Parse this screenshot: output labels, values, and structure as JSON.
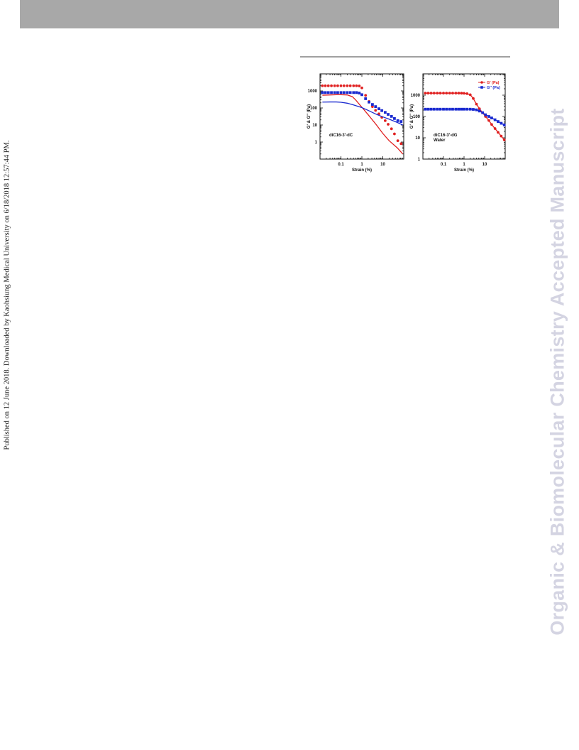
{
  "header": {
    "bar_color": "#a8a8a8"
  },
  "sidebar": {
    "published_text": "Published on 12 June 2018. Downloaded by Kaohsiung Medical University on 6/18/2018 12:57:44 PM."
  },
  "watermark": {
    "text": "Organic & Biomolecular Chemistry Accepted Manuscript",
    "color": "#d4d4e2"
  },
  "colors": {
    "G_prime": "#e02020",
    "G_double_prime": "#1a2ad0"
  },
  "chart_data": [
    {
      "type": "scatter",
      "x_scale": "log",
      "y_scale": "log",
      "xlabel": "Strain (%)",
      "ylabel": "G' & G'' (Pa)",
      "xlim": [
        0.01,
        100
      ],
      "ylim": [
        0.1,
        10000
      ],
      "x_ticks": [
        {
          "v": 0.1,
          "label": "0.1"
        },
        {
          "v": 1,
          "label": "1"
        },
        {
          "v": 10,
          "label": "10"
        }
      ],
      "y_ticks": [
        {
          "v": 1,
          "label": "1"
        },
        {
          "v": 10,
          "label": "10"
        },
        {
          "v": 100,
          "label": "100"
        },
        {
          "v": 1000,
          "label": "1000"
        }
      ],
      "annotations": [
        "diC16-3'-dC"
      ],
      "series": [
        {
          "color": "#e02020",
          "style": "markers",
          "marker": "circle",
          "x": [
            0.013,
            0.018,
            0.025,
            0.035,
            0.05,
            0.07,
            0.1,
            0.14,
            0.2,
            0.28,
            0.4,
            0.55,
            0.75,
            1.0,
            1.5,
            2.2,
            3.2,
            4.5,
            6.5,
            9,
            13,
            18,
            26,
            36,
            52,
            75
          ],
          "y": [
            2000,
            2000,
            2000,
            2000,
            2000,
            2000,
            2000,
            2000,
            2000,
            2000,
            2000,
            2000,
            1950,
            1500,
            550,
            240,
            120,
            72,
            45,
            28,
            18,
            11,
            6,
            3,
            1.2,
            0.8
          ]
        },
        {
          "color": "#1a2ad0",
          "style": "markers",
          "marker": "square",
          "x": [
            0.013,
            0.018,
            0.025,
            0.035,
            0.05,
            0.07,
            0.1,
            0.14,
            0.2,
            0.28,
            0.4,
            0.55,
            0.75,
            1.0,
            1.5,
            2.2,
            3.2,
            4.5,
            6.5,
            9,
            13,
            18,
            26,
            36,
            52,
            75
          ],
          "y": [
            800,
            800,
            800,
            800,
            800,
            800,
            800,
            800,
            800,
            800,
            800,
            800,
            750,
            600,
            350,
            220,
            160,
            120,
            90,
            70,
            55,
            42,
            32,
            24,
            18,
            16
          ]
        },
        {
          "color": "#e02020",
          "style": "line",
          "x": [
            0.013,
            0.03,
            0.06,
            0.1,
            0.2,
            0.35,
            0.5,
            1.0,
            2.0,
            5,
            10,
            20,
            50,
            90
          ],
          "y": [
            560,
            580,
            600,
            600,
            580,
            460,
            300,
            110,
            40,
            10,
            3.2,
            1.2,
            0.45,
            0.2
          ]
        },
        {
          "color": "#1a2ad0",
          "style": "line",
          "x": [
            0.013,
            0.03,
            0.06,
            0.1,
            0.2,
            0.4,
            1.0,
            2.0,
            5,
            10,
            20,
            50,
            90
          ],
          "y": [
            220,
            225,
            225,
            215,
            190,
            150,
            105,
            72,
            42,
            30,
            22,
            14,
            10
          ]
        }
      ]
    },
    {
      "type": "scatter",
      "x_scale": "log",
      "y_scale": "log",
      "xlabel": "Strain (%)",
      "ylabel": "G' & G'' (Pa)",
      "xlim": [
        0.01,
        100
      ],
      "ylim": [
        1,
        10000
      ],
      "x_ticks": [
        {
          "v": 0.1,
          "label": "0.1"
        },
        {
          "v": 1,
          "label": "1"
        },
        {
          "v": 10,
          "label": "10"
        }
      ],
      "y_ticks": [
        {
          "v": 1,
          "label": "1"
        },
        {
          "v": 10,
          "label": "10"
        },
        {
          "v": 100,
          "label": "100"
        },
        {
          "v": 1000,
          "label": "1000"
        }
      ],
      "annotations": [
        "diC16-3'-dG",
        "Water"
      ],
      "legend": {
        "position": "top-right",
        "entries": [
          {
            "name": "G' (Pa)",
            "color": "#e02020",
            "marker": "circle"
          },
          {
            "name": "G'' (Pa)",
            "color": "#1a2ad0",
            "marker": "square"
          }
        ]
      },
      "series": [
        {
          "name": "G' (Pa)",
          "color": "#e02020",
          "style": "line+markers",
          "marker": "circle",
          "x": [
            0.013,
            0.018,
            0.025,
            0.035,
            0.05,
            0.07,
            0.1,
            0.14,
            0.2,
            0.28,
            0.4,
            0.55,
            0.75,
            1.0,
            1.4,
            2.0,
            2.8,
            4.0,
            5.6,
            8,
            11,
            16,
            22,
            32,
            45,
            64,
            90
          ],
          "y": [
            1250,
            1250,
            1250,
            1250,
            1250,
            1250,
            1250,
            1250,
            1250,
            1250,
            1250,
            1250,
            1240,
            1220,
            1180,
            1050,
            700,
            380,
            230,
            150,
            100,
            65,
            42,
            27,
            18,
            12,
            8
          ]
        },
        {
          "name": "G'' (Pa)",
          "color": "#1a2ad0",
          "style": "line+markers",
          "marker": "square",
          "x": [
            0.013,
            0.018,
            0.025,
            0.035,
            0.05,
            0.07,
            0.1,
            0.14,
            0.2,
            0.28,
            0.4,
            0.55,
            0.75,
            1.0,
            1.4,
            2.0,
            2.8,
            4.0,
            5.6,
            8,
            11,
            16,
            22,
            32,
            45,
            64,
            90
          ],
          "y": [
            220,
            220,
            220,
            220,
            220,
            220,
            220,
            220,
            220,
            220,
            220,
            220,
            220,
            220,
            220,
            220,
            215,
            205,
            180,
            150,
            120,
            100,
            85,
            70,
            58,
            48,
            40
          ]
        }
      ]
    }
  ]
}
